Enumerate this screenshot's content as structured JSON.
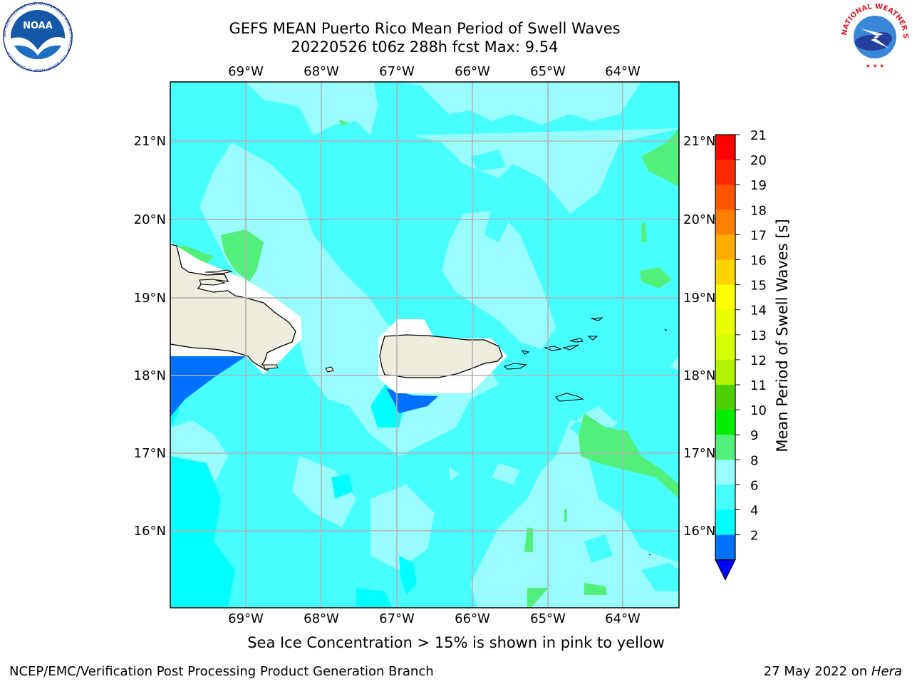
{
  "header": {
    "title_line1": "GEFS MEAN Puerto Rico Mean Period of Swell Waves",
    "title_line2": "20220526 t06z 288h fcst   Max: 9.54"
  },
  "map": {
    "lon_labels": [
      "69°W",
      "68°W",
      "67°W",
      "66°W",
      "65°W",
      "64°W"
    ],
    "lat_labels": [
      "21°N",
      "20°N",
      "19°N",
      "18°N",
      "17°N",
      "16°N"
    ],
    "land_color": "#eeecdc",
    "ocean_colors": {
      "band_2_4": "#0070ff",
      "band_4_6": "#00ffff",
      "band_6_8": "#47ffff",
      "band_8_9": "#9afdfd",
      "band_9_10": "#52ef7a"
    }
  },
  "colorbar": {
    "label": "Mean Period of Swell Waves [s]",
    "ticks": [
      "21",
      "20",
      "19",
      "18",
      "17",
      "16",
      "15",
      "14",
      "13",
      "12",
      "11",
      "10",
      "9",
      "8",
      "6",
      "4",
      "2"
    ],
    "colors": [
      "#ff0000",
      "#ff2a00",
      "#ff5500",
      "#ff8000",
      "#ffaa00",
      "#ffd400",
      "#ffff00",
      "#eaff00",
      "#d4ff00",
      "#b0f200",
      "#4ed000",
      "#00ec00",
      "#52ef7a",
      "#9afdfd",
      "#47ffff",
      "#00ffff",
      "#0070ff"
    ],
    "under_color": "#0000ff"
  },
  "caption": "Sea Ice Concentration > 15% is shown in pink to yellow",
  "footer": {
    "left": "NCEP/EMC/Verification Post Processing Product Generation Branch",
    "right_date": "27 May 2022 on ",
    "right_host": "Hera"
  },
  "logos": {
    "noaa": "NOAA",
    "noaa_ring": "NATIONAL OCEANIC AND ATMOSPHERIC ADMINISTRATION · U.S. DEPARTMENT OF COMMERCE",
    "nws_ring": "NATIONAL WEATHER SERVICE"
  }
}
